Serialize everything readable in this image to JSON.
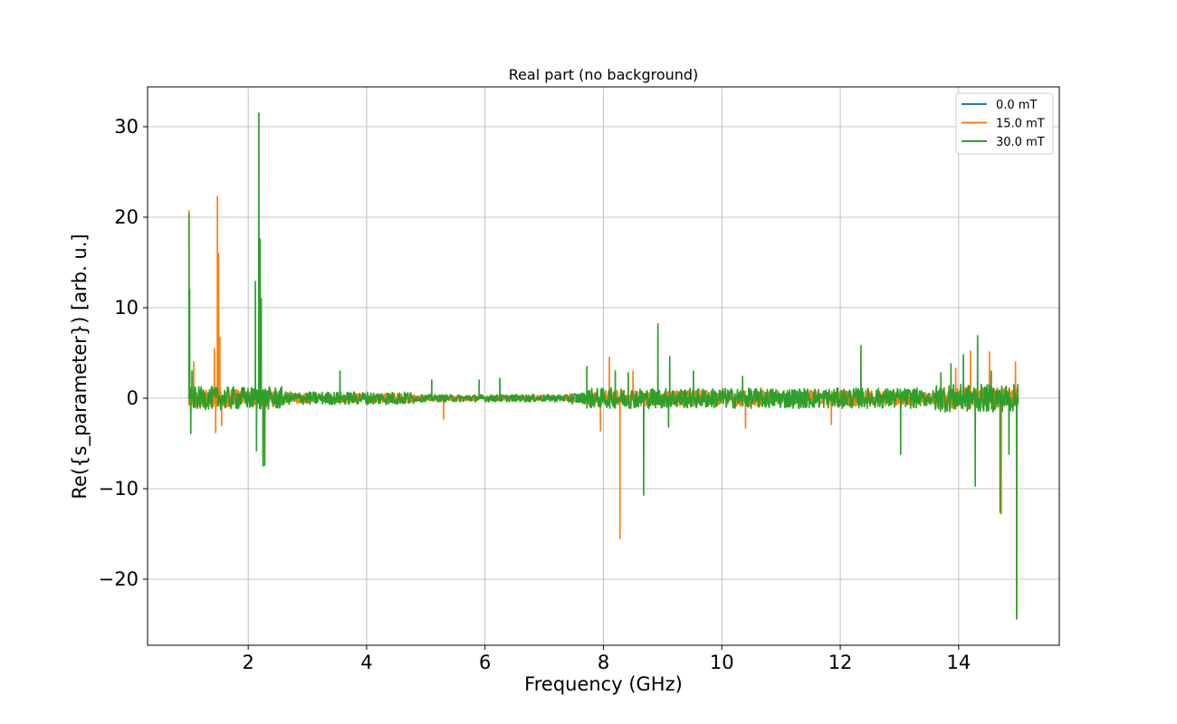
{
  "chart_data": {
    "type": "line",
    "title": "Real part (no background)",
    "xlabel": "Frequency (GHz)",
    "ylabel": "Re({s_parameter}) [arb. u.]",
    "xlim": [
      0.3,
      15.7
    ],
    "ylim": [
      -27.3,
      34.4
    ],
    "xticks": [
      2,
      4,
      6,
      8,
      10,
      12,
      14
    ],
    "xtick_labels": [
      "2",
      "4",
      "6",
      "8",
      "10",
      "12",
      "14"
    ],
    "yticks": [
      -20,
      -10,
      0,
      10,
      20,
      30
    ],
    "ytick_labels": [
      "−20",
      "−10",
      "0",
      "10",
      "20",
      "30"
    ],
    "grid": true,
    "legend_position": "top-right",
    "series": [
      {
        "name": "0.0 mT",
        "color": "#1f77b4",
        "noise_level": 0,
        "spikes": []
      },
      {
        "name": "15.0 mT",
        "color": "#ff7f0e",
        "noise_level": 0.7,
        "spikes": [
          [
            1.0,
            20.7
          ],
          [
            1.03,
            -1.5
          ],
          [
            1.08,
            4.0
          ],
          [
            1.43,
            5.5
          ],
          [
            1.45,
            -3.8
          ],
          [
            1.48,
            22.3
          ],
          [
            1.5,
            16.0
          ],
          [
            1.52,
            6.7
          ],
          [
            1.55,
            -3.0
          ],
          [
            2.25,
            -6.5
          ],
          [
            5.3,
            -2.3
          ],
          [
            7.95,
            -3.6
          ],
          [
            8.1,
            4.5
          ],
          [
            8.28,
            -15.5
          ],
          [
            8.5,
            3.0
          ],
          [
            10.4,
            -3.3
          ],
          [
            11.85,
            -2.9
          ],
          [
            13.95,
            3.3
          ],
          [
            14.2,
            5.2
          ],
          [
            14.52,
            5.1
          ],
          [
            14.72,
            -12.8
          ],
          [
            14.96,
            4.0
          ],
          [
            14.98,
            -24.0
          ]
        ]
      },
      {
        "name": "30.0 mT",
        "color": "#2ca02c",
        "noise_level": 0.9,
        "spikes": [
          [
            1.0,
            20.3
          ],
          [
            1.01,
            12.0
          ],
          [
            1.03,
            -3.9
          ],
          [
            1.05,
            3.0
          ],
          [
            2.12,
            12.9
          ],
          [
            2.14,
            -5.8
          ],
          [
            2.18,
            31.5
          ],
          [
            2.2,
            17.6
          ],
          [
            2.22,
            11.0
          ],
          [
            2.25,
            -7.5
          ],
          [
            2.28,
            -7.4
          ],
          [
            3.55,
            3.0
          ],
          [
            5.1,
            2.0
          ],
          [
            5.9,
            2.0
          ],
          [
            6.25,
            2.2
          ],
          [
            7.72,
            3.5
          ],
          [
            8.2,
            3.0
          ],
          [
            8.42,
            2.8
          ],
          [
            8.68,
            -10.7
          ],
          [
            8.92,
            8.2
          ],
          [
            9.12,
            4.6
          ],
          [
            9.1,
            -3.2
          ],
          [
            9.52,
            3.0
          ],
          [
            10.35,
            2.4
          ],
          [
            12.35,
            5.8
          ],
          [
            13.02,
            -6.2
          ],
          [
            13.7,
            2.8
          ],
          [
            13.87,
            3.8
          ],
          [
            14.08,
            4.8
          ],
          [
            14.32,
            6.9
          ],
          [
            14.28,
            -9.7
          ],
          [
            14.55,
            3.0
          ],
          [
            14.7,
            -12.6
          ],
          [
            14.85,
            -6.2
          ],
          [
            14.98,
            -24.4
          ],
          [
            15.0,
            1.5
          ]
        ]
      }
    ]
  }
}
